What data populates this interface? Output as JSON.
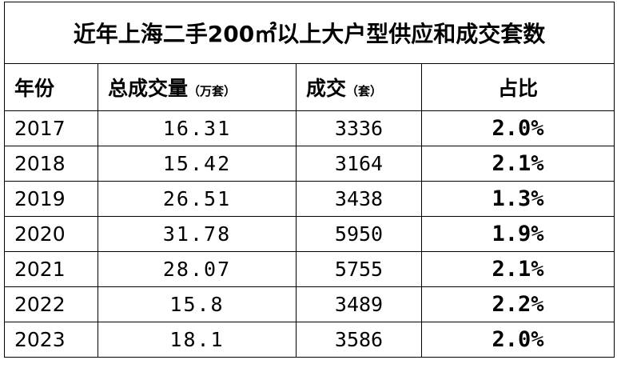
{
  "table": {
    "title": "近年上海二手200㎡以上大户型供应和成交套数",
    "headers": [
      {
        "main": "年份"
      },
      {
        "main": "总成交量",
        "unit": "（万套）"
      },
      {
        "main": "成交",
        "unit": "（套）"
      },
      {
        "main": "占比"
      }
    ],
    "rows": [
      [
        "2017",
        "16.31",
        "3336",
        "2.0%"
      ],
      [
        "2018",
        "15.42",
        "3164",
        "2.1%"
      ],
      [
        "2019",
        "26.51",
        "3438",
        "1.3%"
      ],
      [
        "2020",
        "31.78",
        "5950",
        "1.9%"
      ],
      [
        "2021",
        "28.07",
        "5755",
        "2.1%"
      ],
      [
        "2022",
        "15.8",
        "3489",
        "2.2%"
      ],
      [
        "2023",
        "18.1",
        "3586",
        "2.0%"
      ]
    ]
  }
}
